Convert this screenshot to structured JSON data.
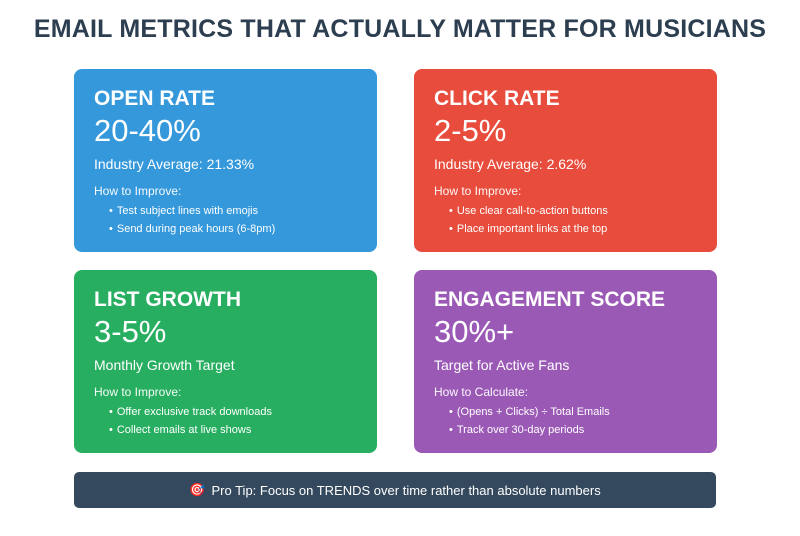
{
  "title": "EMAIL METRICS THAT ACTUALLY MATTER FOR MUSICIANS",
  "colors": {
    "open_rate": "#3498db",
    "click_rate": "#e74c3c",
    "list_growth": "#27ae60",
    "engagement": "#9b59b6",
    "footer": "#34495e",
    "title": "#2c3e50"
  },
  "cards": [
    {
      "title": "OPEN RATE",
      "value": "20-40%",
      "subtitle": "Industry Average: 21.33%",
      "howto_label": "How to Improve:",
      "tips": [
        "Test subject lines with emojis",
        "Send during peak hours (6-8pm)"
      ]
    },
    {
      "title": "CLICK RATE",
      "value": "2-5%",
      "subtitle": "Industry Average: 2.62%",
      "howto_label": "How to Improve:",
      "tips": [
        "Use clear call-to-action buttons",
        "Place important links at the top"
      ]
    },
    {
      "title": "LIST GROWTH",
      "value": "3-5%",
      "subtitle": "Monthly Growth Target",
      "howto_label": "How to Improve:",
      "tips": [
        "Offer exclusive track downloads",
        "Collect emails at live shows"
      ]
    },
    {
      "title": "ENGAGEMENT SCORE",
      "value": "30%+",
      "subtitle": "Target for Active Fans",
      "howto_label": "How to Calculate:",
      "tips": [
        "(Opens + Clicks) ÷ Total Emails",
        "Track over 30-day periods"
      ]
    }
  ],
  "footer": {
    "icon": "target-icon",
    "icon_glyph": "🎯",
    "text": "Pro Tip: Focus on TRENDS over time rather than absolute numbers"
  }
}
